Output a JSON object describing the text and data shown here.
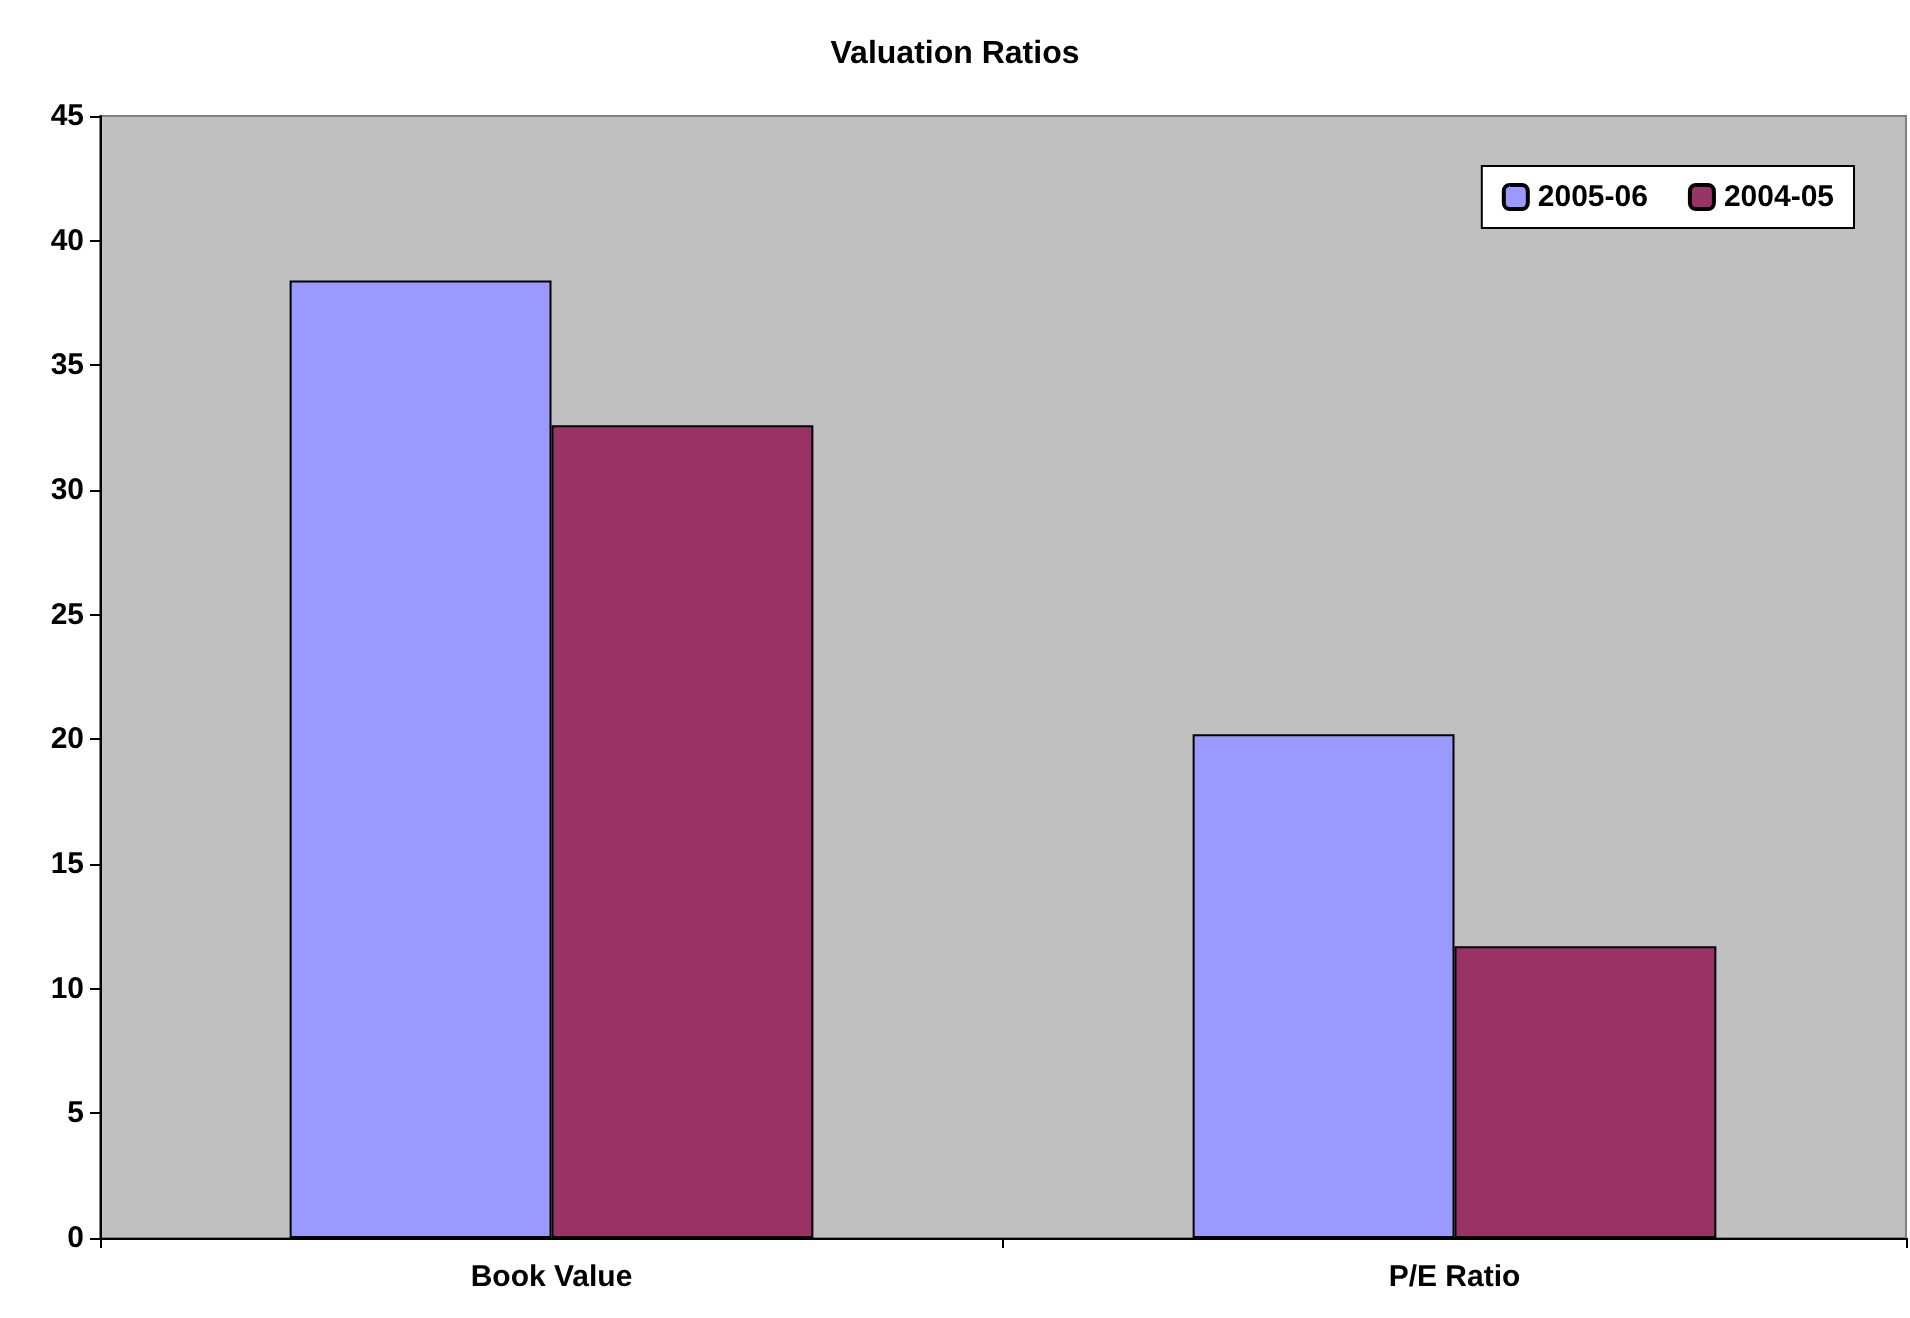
{
  "chart_data": {
    "type": "bar",
    "title": "Valuation Ratios",
    "categories": [
      "Book Value",
      "P/E Ratio"
    ],
    "series": [
      {
        "name": "2005-06",
        "color": "#9999ff",
        "values": [
          38.4,
          20.2
        ]
      },
      {
        "name": "2004-05",
        "color": "#993366",
        "values": [
          32.6,
          11.7
        ]
      }
    ],
    "ylim": [
      0,
      45
    ],
    "yticks": [
      0,
      5,
      10,
      15,
      20,
      25,
      30,
      35,
      40,
      45
    ],
    "grid": false,
    "legend": "top right"
  }
}
